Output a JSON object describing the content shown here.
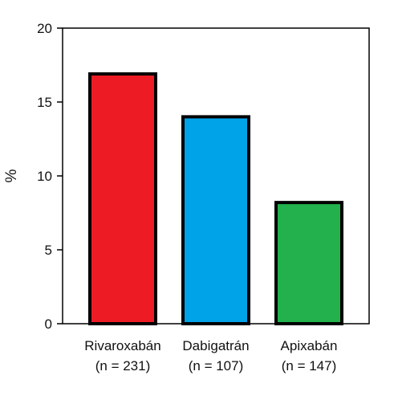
{
  "chart_data": {
    "type": "bar",
    "categories": [
      "Rivaroxabán",
      "Dabigatrán",
      "Apixabán"
    ],
    "category_sublabels": [
      "(n = 231)",
      "(n = 107)",
      "(n = 147)"
    ],
    "values": [
      16.9,
      14.0,
      8.2
    ],
    "colors": [
      "#ed1c24",
      "#00a2e8",
      "#22b14c"
    ],
    "ylabel": "%",
    "xlabel": "",
    "ylim": [
      0,
      20
    ],
    "yticks": [
      0,
      5,
      10,
      15,
      20
    ],
    "ytick_labels": [
      "0",
      "5",
      "10",
      "15",
      "20"
    ],
    "grid": false,
    "legend": "none"
  }
}
